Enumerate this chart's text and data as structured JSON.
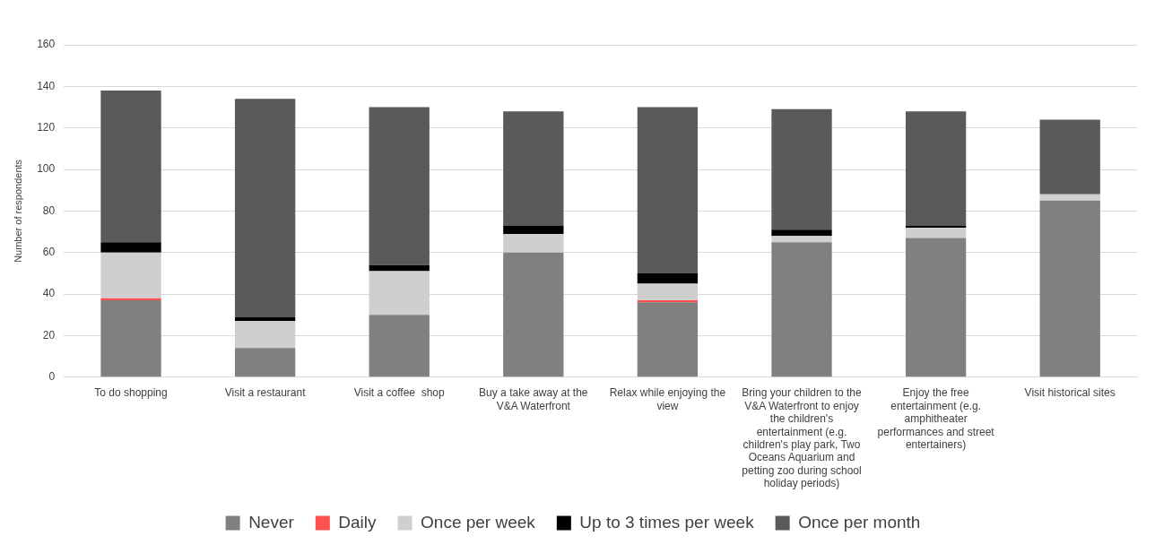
{
  "chart_data": {
    "type": "bar",
    "stacked": true,
    "ylabel": "Number of respondents",
    "categories": [
      "To do shopping",
      "Visit a restaurant",
      "Visit a coffee  shop",
      "Buy a take away at the V&A Waterfront",
      "Relax while enjoying the view",
      "Bring your children to the V&A Waterfront to enjoy the children's entertainment (e.g. children's play park, Two Oceans Aquarium and petting zoo during school holiday periods)",
      "Enjoy the free entertainment (e.g. amphitheater performances and street entertainers)",
      "Visit historical sites"
    ],
    "series": [
      {
        "name": "Never",
        "color": "#808080",
        "values": [
          37,
          14,
          30,
          60,
          36,
          65,
          67,
          85
        ]
      },
      {
        "name": "Daily",
        "color": "#ff5050",
        "values": [
          1,
          0,
          0,
          0,
          1,
          0,
          0,
          0
        ]
      },
      {
        "name": "Once per week",
        "color": "#cfcfcf",
        "values": [
          22,
          13,
          21,
          9,
          8,
          3,
          5,
          3
        ]
      },
      {
        "name": "Up to 3 times per week",
        "color": "#000000",
        "values": [
          5,
          2,
          3,
          4,
          5,
          3,
          1,
          0
        ]
      },
      {
        "name": "Once per month",
        "color": "#5a5a5a",
        "values": [
          73,
          105,
          76,
          55,
          80,
          58,
          55,
          36
        ]
      }
    ],
    "ylim": [
      0,
      160
    ],
    "yticks": [
      0,
      20,
      40,
      60,
      80,
      100,
      120,
      140,
      160
    ],
    "grid": "y",
    "legend": "bottom"
  }
}
